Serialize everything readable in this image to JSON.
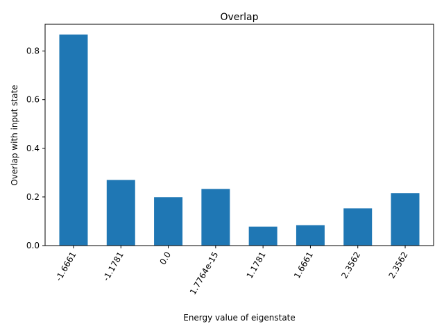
{
  "chart_data": {
    "type": "bar",
    "title": "Overlap",
    "xlabel": "Energy value of eigenstate",
    "ylabel": "Overlap with input state",
    "categories": [
      "-1.6661",
      "-1.1781",
      "0.0",
      "1.7764e-15",
      "1.1781",
      "1.6661",
      "2.3562",
      "2.3562"
    ],
    "values": [
      0.868,
      0.27,
      0.199,
      0.233,
      0.078,
      0.084,
      0.153,
      0.216
    ],
    "ylim": [
      0,
      0.91
    ],
    "yticks": [
      0.0,
      0.2,
      0.4,
      0.6,
      0.8
    ],
    "ytick_labels": [
      "0.0",
      "0.2",
      "0.4",
      "0.6",
      "0.8"
    ],
    "xtick_rotation": 60,
    "grid": false,
    "bar_color": "#1f77b4"
  }
}
